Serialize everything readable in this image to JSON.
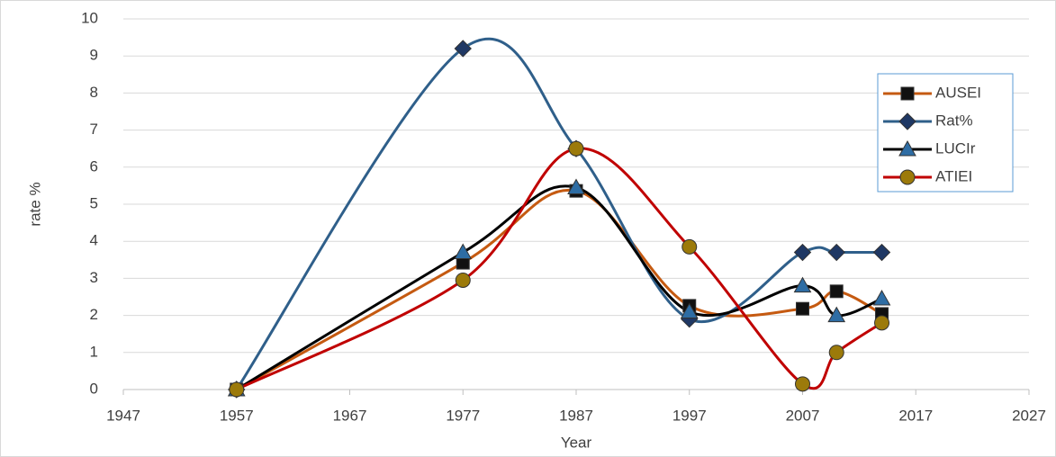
{
  "chart_data": {
    "type": "line",
    "x_label": "Year",
    "y_label": "rate %",
    "x": [
      1957,
      1977,
      1987,
      1997,
      2007,
      2010,
      2014
    ],
    "series": [
      {
        "name": "AUSEI",
        "color": "#c55a11",
        "marker": "square",
        "marker_color": "#111111",
        "values": [
          0,
          3.42,
          5.36,
          2.26,
          2.18,
          2.65,
          2.04
        ]
      },
      {
        "name": "Rat%",
        "color": "#2f5f8a",
        "marker": "diamond",
        "marker_color": "#1f3864",
        "values": [
          0,
          9.2,
          6.5,
          1.9,
          3.7,
          3.7,
          3.7
        ]
      },
      {
        "name": "LUCIr",
        "color": "#000000",
        "marker": "triangle",
        "marker_color": "#2e6da4",
        "values": [
          0,
          3.7,
          5.45,
          2.1,
          2.8,
          2.0,
          2.45
        ]
      },
      {
        "name": "ATIEI",
        "color": "#c00000",
        "marker": "circle",
        "marker_color": "#9c7a0a",
        "values": [
          0,
          2.95,
          6.5,
          3.85,
          0.15,
          1.0,
          1.8
        ]
      }
    ],
    "xlim": [
      1947,
      2027
    ],
    "xticks": [
      1947,
      1957,
      1967,
      1977,
      1987,
      1997,
      2007,
      2017,
      2027
    ],
    "ylim": [
      0,
      10
    ],
    "yticks": [
      0,
      1,
      2,
      3,
      4,
      5,
      6,
      7,
      8,
      9,
      10
    ],
    "grid": true,
    "smooth": true,
    "legend": "upper right"
  }
}
